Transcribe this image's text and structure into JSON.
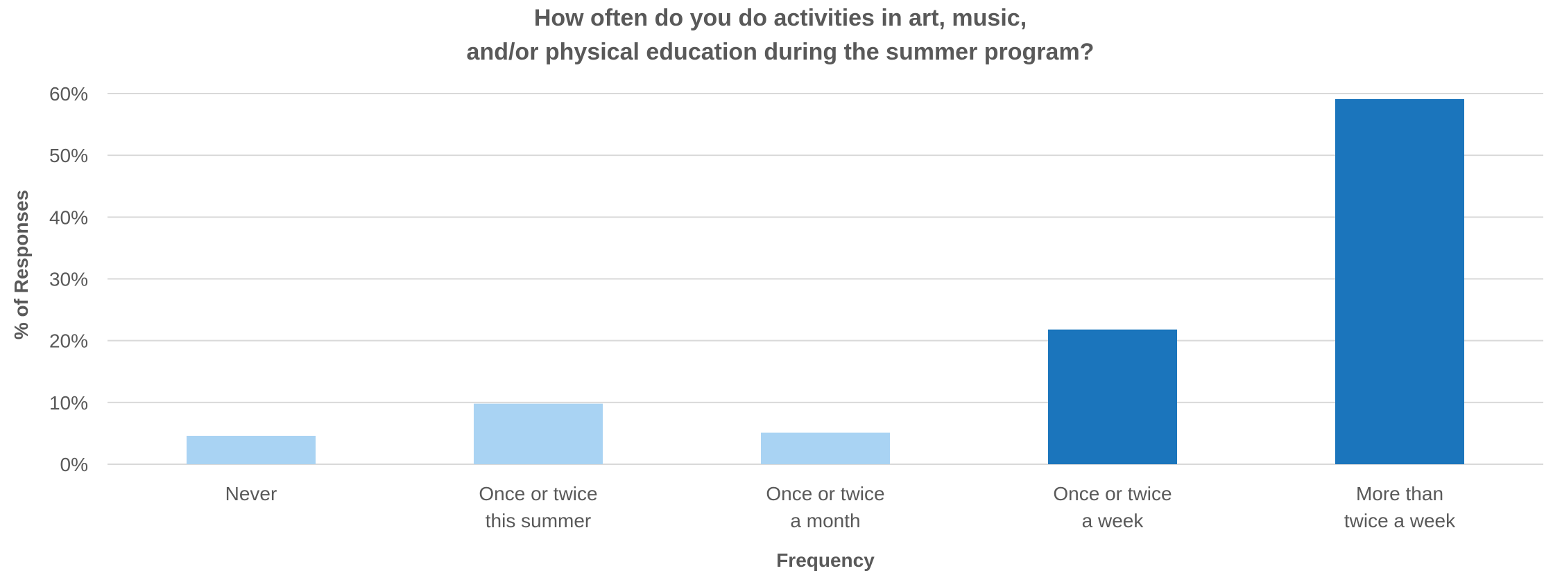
{
  "chart_data": {
    "type": "bar",
    "title_lines": [
      "How often do you do activities in art, music,",
      "and/or physical education during the summer program?"
    ],
    "xlabel": "Frequency",
    "ylabel": "% of Responses",
    "ylim": [
      0,
      60
    ],
    "yticks": [
      "0%",
      "10%",
      "20%",
      "30%",
      "40%",
      "50%",
      "60%"
    ],
    "ytick_values": [
      0,
      10,
      20,
      30,
      40,
      50,
      60
    ],
    "grid": true,
    "legend": "none",
    "categories": [
      [
        "Never"
      ],
      [
        "Once or twice",
        "this summer"
      ],
      [
        "Once or twice",
        "a month"
      ],
      [
        "Once or twice",
        "a week"
      ],
      [
        "More than",
        "twice a week"
      ]
    ],
    "values": [
      4.6,
      9.8,
      5.1,
      21.8,
      59.1
    ],
    "bar_colors": [
      "#a9d3f3",
      "#a9d3f3",
      "#a9d3f3",
      "#1b75bc",
      "#1b75bc"
    ]
  }
}
